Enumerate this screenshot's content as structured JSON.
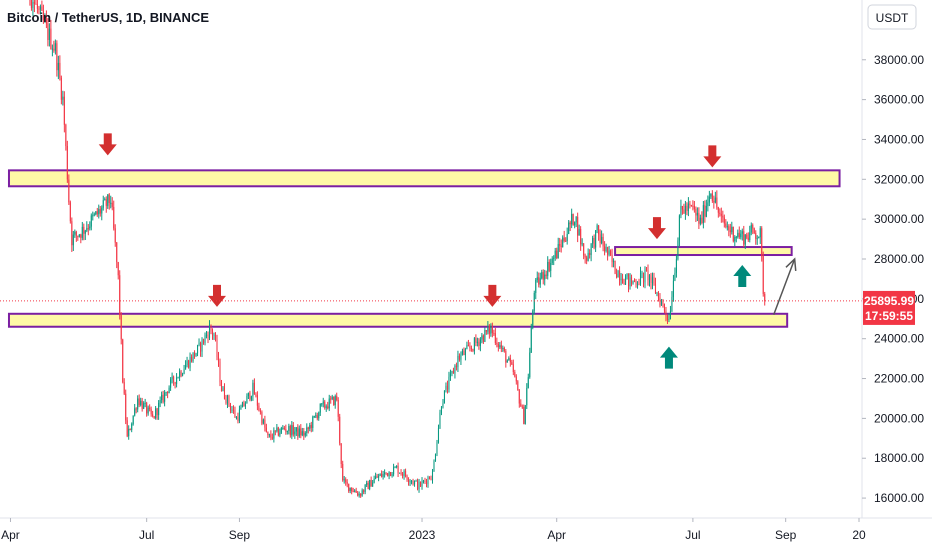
{
  "chart_data": {
    "type": "candlestick",
    "title": "Bitcoin / TetherUS, 1D, BINANCE",
    "currency": "USDT",
    "ylim": [
      15000,
      41000
    ],
    "y_ticks": [
      {
        "value": 16000,
        "label": "16000.00"
      },
      {
        "value": 18000,
        "label": "18000.00"
      },
      {
        "value": 20000,
        "label": "20000.00"
      },
      {
        "value": 22000,
        "label": "22000.00"
      },
      {
        "value": 24000,
        "label": "24000.00"
      },
      {
        "value": 26000,
        "label": "26000.00"
      },
      {
        "value": 28000,
        "label": "28000.00"
      },
      {
        "value": 30000,
        "label": "30000.00"
      },
      {
        "value": 32000,
        "label": "32000.00"
      },
      {
        "value": 34000,
        "label": "34000.00"
      },
      {
        "value": 36000,
        "label": "36000.00"
      },
      {
        "value": 38000,
        "label": "38000.00"
      }
    ],
    "xlim": [
      "2022-03-25",
      "2023-10-22"
    ],
    "x_ticks": [
      {
        "date": "2022-04-01",
        "label": "Apr"
      },
      {
        "date": "2022-07-01",
        "label": "Jul"
      },
      {
        "date": "2022-09-01",
        "label": "Sep"
      },
      {
        "date": "2023-01-01",
        "label": "2023"
      },
      {
        "date": "2023-04-01",
        "label": "Apr"
      },
      {
        "date": "2023-07-01",
        "label": "Jul"
      },
      {
        "date": "2023-09-01",
        "label": "Sep"
      },
      {
        "date": "2023-10-20",
        "label": "20"
      }
    ],
    "price_series": [
      [
        "2022-03-25",
        44500
      ],
      [
        "2022-04-10",
        42000
      ],
      [
        "2022-05-01",
        38500
      ],
      [
        "2022-05-06",
        36000
      ],
      [
        "2022-05-10",
        31000
      ],
      [
        "2022-05-12",
        29000
      ],
      [
        "2022-05-20",
        29500
      ],
      [
        "2022-06-01",
        30500
      ],
      [
        "2022-06-07",
        31000
      ],
      [
        "2022-06-12",
        27000
      ],
      [
        "2022-06-15",
        22000
      ],
      [
        "2022-06-18",
        19000
      ],
      [
        "2022-06-25",
        21000
      ],
      [
        "2022-07-05",
        20000
      ],
      [
        "2022-07-15",
        21500
      ],
      [
        "2022-07-25",
        22500
      ],
      [
        "2022-08-05",
        23500
      ],
      [
        "2022-08-12",
        24500
      ],
      [
        "2022-08-15",
        24200
      ],
      [
        "2022-08-20",
        21500
      ],
      [
        "2022-08-30",
        20000
      ],
      [
        "2022-09-10",
        21500
      ],
      [
        "2022-09-20",
        19000
      ],
      [
        "2022-10-01",
        19500
      ],
      [
        "2022-10-15",
        19200
      ],
      [
        "2022-10-25",
        20500
      ],
      [
        "2022-11-05",
        21000
      ],
      [
        "2022-11-09",
        16800
      ],
      [
        "2022-11-20",
        16200
      ],
      [
        "2022-12-01",
        17000
      ],
      [
        "2022-12-15",
        17500
      ],
      [
        "2022-12-30",
        16600
      ],
      [
        "2023-01-08",
        17200
      ],
      [
        "2023-01-14",
        20800
      ],
      [
        "2023-01-25",
        23000
      ],
      [
        "2023-02-02",
        23500
      ],
      [
        "2023-02-16",
        24500
      ],
      [
        "2023-02-25",
        23200
      ],
      [
        "2023-03-03",
        22300
      ],
      [
        "2023-03-10",
        20000
      ],
      [
        "2023-03-13",
        22200
      ],
      [
        "2023-03-17",
        26500
      ],
      [
        "2023-03-25",
        27500
      ],
      [
        "2023-04-01",
        28300
      ],
      [
        "2023-04-13",
        30200
      ],
      [
        "2023-04-20",
        28000
      ],
      [
        "2023-04-28",
        29300
      ],
      [
        "2023-05-10",
        27500
      ],
      [
        "2023-05-20",
        26800
      ],
      [
        "2023-06-01",
        27200
      ],
      [
        "2023-06-10",
        25800
      ],
      [
        "2023-06-15",
        25000
      ],
      [
        "2023-06-20",
        28300
      ],
      [
        "2023-06-23",
        30500
      ],
      [
        "2023-07-01",
        30500
      ],
      [
        "2023-07-06",
        29800
      ],
      [
        "2023-07-13",
        31500
      ],
      [
        "2023-07-20",
        29900
      ],
      [
        "2023-07-28",
        29300
      ],
      [
        "2023-08-05",
        29100
      ],
      [
        "2023-08-10",
        29400
      ],
      [
        "2023-08-15",
        29200
      ],
      [
        "2023-08-17",
        26500
      ],
      [
        "2023-08-18",
        25900
      ]
    ],
    "current_price": {
      "value": 25895.99,
      "label": "25895.99",
      "countdown": "17:59:55",
      "color": "#f23645"
    },
    "zones": [
      {
        "x0": "2022-03-31",
        "x1": "2023-10-07",
        "y0": 31650,
        "y1": 32450
      },
      {
        "x0": "2023-05-10",
        "x1": "2023-09-05",
        "y0": 28200,
        "y1": 28600
      },
      {
        "x0": "2022-03-31",
        "x1": "2023-09-02",
        "y0": 24600,
        "y1": 25250
      }
    ],
    "down_arrows": [
      {
        "date": "2022-06-05",
        "value": 33200
      },
      {
        "date": "2022-08-17",
        "value": 25600
      },
      {
        "date": "2023-02-17",
        "value": 25600
      },
      {
        "date": "2023-06-07",
        "value": 29000
      },
      {
        "date": "2023-07-14",
        "value": 32600
      }
    ],
    "up_arrows": [
      {
        "date": "2023-06-15",
        "value": 23600
      },
      {
        "date": "2023-08-03",
        "value": 27700
      }
    ],
    "projection_arrow": {
      "x0": "2023-08-24",
      "y0": 25200,
      "x1": "2023-09-07",
      "y1": 28000
    },
    "colors": {
      "up": "#089981",
      "down": "#f23645",
      "zone_fill": "#fff9a6",
      "zone_border": "#7b1fa2",
      "arrow_down": "#d32f2f",
      "arrow_up": "#00897b",
      "projection": "#555555",
      "axis_border": "#e0e3eb"
    }
  }
}
